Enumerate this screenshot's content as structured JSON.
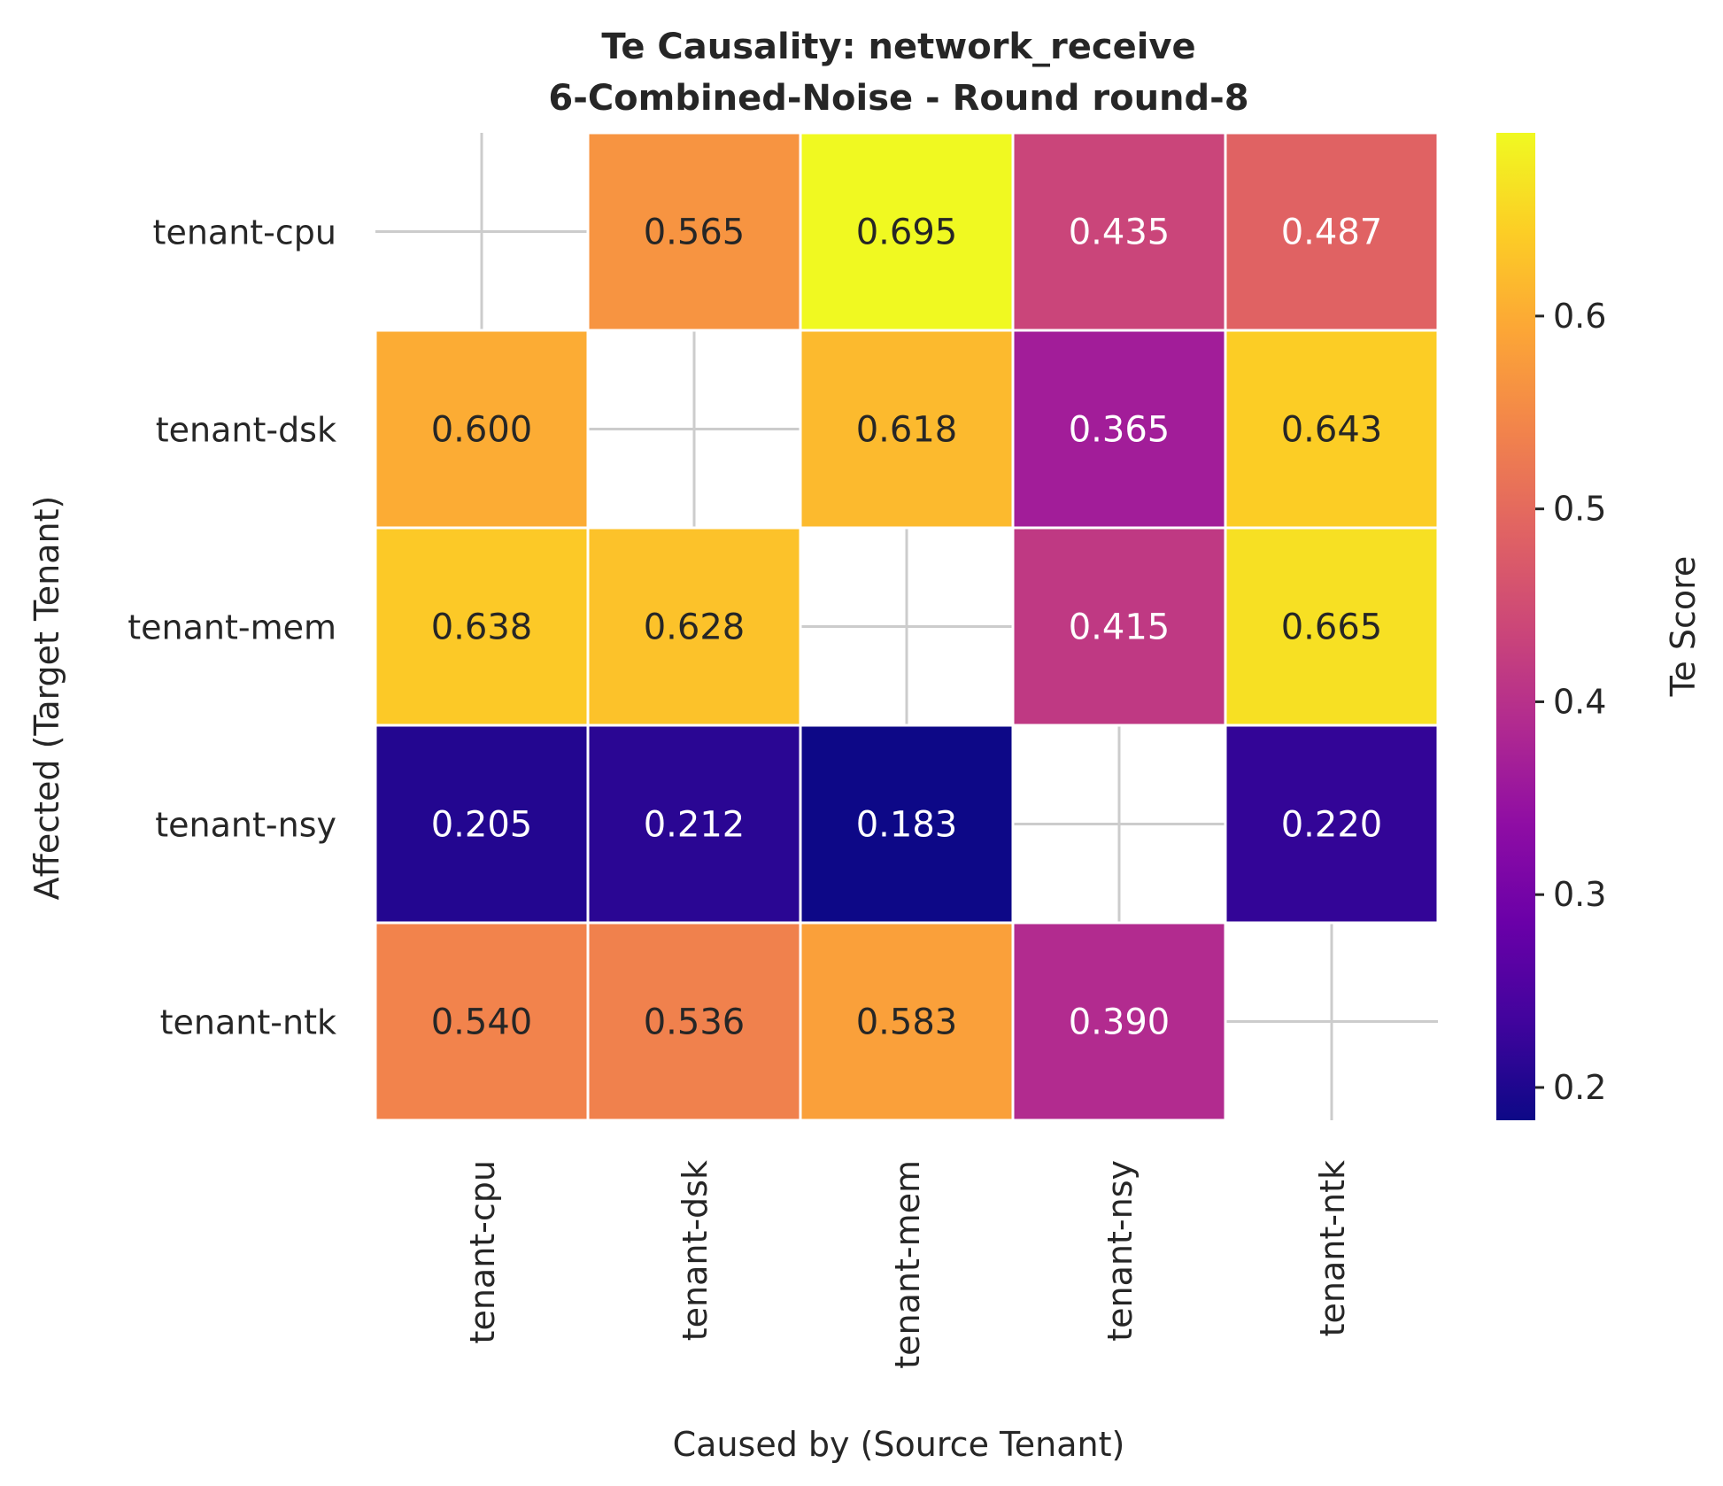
{
  "chart_data": {
    "type": "heatmap",
    "title_line1": "Te Causality: network_receive",
    "title_line2": "6-Combined-Noise - Round round-8",
    "xlabel": "Caused by (Source Tenant)",
    "ylabel": "Affected (Target Tenant)",
    "x_categories": [
      "tenant-cpu",
      "tenant-dsk",
      "tenant-mem",
      "tenant-nsy",
      "tenant-ntk"
    ],
    "y_categories": [
      "tenant-cpu",
      "tenant-dsk",
      "tenant-mem",
      "tenant-nsy",
      "tenant-ntk"
    ],
    "values": [
      [
        null,
        0.565,
        0.695,
        0.435,
        0.487
      ],
      [
        0.6,
        null,
        0.618,
        0.365,
        0.643
      ],
      [
        0.638,
        0.628,
        null,
        0.415,
        0.665
      ],
      [
        0.205,
        0.212,
        0.183,
        null,
        0.22
      ],
      [
        0.54,
        0.536,
        0.583,
        0.39,
        null
      ]
    ],
    "value_labels": [
      [
        "",
        "0.565",
        "0.695",
        "0.435",
        "0.487"
      ],
      [
        "0.600",
        "",
        "0.618",
        "0.365",
        "0.643"
      ],
      [
        "0.638",
        "0.628",
        "",
        "0.415",
        "0.665"
      ],
      [
        "0.205",
        "0.212",
        "0.183",
        "",
        "0.220"
      ],
      [
        "0.540",
        "0.536",
        "0.583",
        "0.390",
        ""
      ]
    ],
    "colormap": "plasma",
    "colorbar": {
      "label": "Te Score",
      "range": [
        0.183,
        0.695
      ],
      "ticks": [
        0.2,
        0.3,
        0.4,
        0.5,
        0.6
      ],
      "tick_labels": [
        "0.2",
        "0.3",
        "0.4",
        "0.5",
        "0.6"
      ]
    },
    "diagonal": "masked",
    "grid": true
  }
}
